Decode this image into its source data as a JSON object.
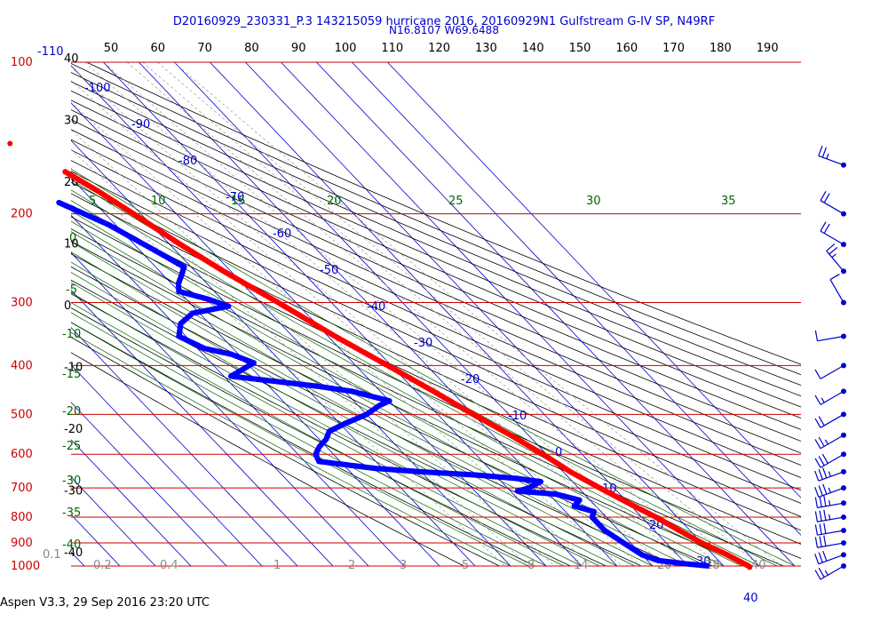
{
  "header": {
    "title_line1": "D20160929_230331_P.3 143215059 hurricane 2016, 20160929N1 Gulfstream G-IV SP, N49RF",
    "title_line2": "N16.8107 W69.6488"
  },
  "footer": {
    "caption": "Aspen V3.3, 29 Sep 2016  23:20 UTC"
  },
  "colors": {
    "isobar": "#cc0000",
    "isotherm": "#0000cc",
    "dry_adiabat": "#000000",
    "moist_adiabat": "#006600",
    "mixing_ratio": "#999999",
    "temperature_trace": "#ff0000",
    "dewpoint_trace": "#0000ff",
    "wind": "#0000cc"
  },
  "chart_data": {
    "type": "skew-T log-P",
    "pressure_levels_hpa": [
      100,
      200,
      300,
      400,
      500,
      600,
      700,
      800,
      900,
      1000
    ],
    "pressure_labels": [
      "100",
      "200",
      "300",
      "400",
      "500",
      "600",
      "700",
      "800",
      "900",
      "1000"
    ],
    "top_theta_labels": [
      "50",
      "60",
      "70",
      "80",
      "90",
      "100",
      "110",
      "120",
      "130",
      "140",
      "150",
      "160",
      "170",
      "180",
      "190"
    ],
    "left_theta_labels": [
      "40",
      "30",
      "20",
      "10",
      "0",
      "-10",
      "-20",
      "-30",
      "-40"
    ],
    "isotherm_labels": [
      "-110",
      "-100",
      "-90",
      "-80",
      "-70",
      "-60",
      "-50",
      "-40",
      "-30",
      "-20",
      "-10",
      "0",
      "10",
      "20",
      "30",
      "40"
    ],
    "moist_adiabat_labels": [
      "5",
      "10",
      "15",
      "20",
      "25",
      "30",
      "35",
      "0",
      "-5",
      "-10",
      "-15",
      "-20",
      "-25",
      "-30",
      "-35",
      "-40"
    ],
    "mixing_ratio_labels": [
      "0.1",
      "0.2",
      "0.4",
      "1",
      "2",
      "3",
      "5",
      "8",
      "14",
      "20",
      "28",
      "40"
    ],
    "temperature_profile": {
      "name": "Temperature",
      "points": [
        {
          "p": 165,
          "t": -60
        },
        {
          "p": 180,
          "t": -56
        },
        {
          "p": 200,
          "t": -52
        },
        {
          "p": 230,
          "t": -47
        },
        {
          "p": 260,
          "t": -42
        },
        {
          "p": 300,
          "t": -35
        },
        {
          "p": 350,
          "t": -28
        },
        {
          "p": 400,
          "t": -21
        },
        {
          "p": 450,
          "t": -15
        },
        {
          "p": 500,
          "t": -10
        },
        {
          "p": 550,
          "t": -5
        },
        {
          "p": 600,
          "t": -1
        },
        {
          "p": 650,
          "t": 2
        },
        {
          "p": 700,
          "t": 6
        },
        {
          "p": 750,
          "t": 10
        },
        {
          "p": 800,
          "t": 14
        },
        {
          "p": 850,
          "t": 17
        },
        {
          "p": 900,
          "t": 20
        },
        {
          "p": 950,
          "t": 24
        },
        {
          "p": 1000,
          "t": 27
        },
        {
          "p": 1010,
          "t": 27
        }
      ]
    },
    "isolated_point": {
      "p": 145,
      "t": -68
    },
    "dewpoint_profile": {
      "name": "Dewpoint",
      "points": [
        {
          "p": 190,
          "t": -70
        },
        {
          "p": 210,
          "t": -62
        },
        {
          "p": 240,
          "t": -55
        },
        {
          "p": 255,
          "t": -52
        },
        {
          "p": 265,
          "t": -55
        },
        {
          "p": 275,
          "t": -58
        },
        {
          "p": 285,
          "t": -60
        },
        {
          "p": 295,
          "t": -54
        },
        {
          "p": 305,
          "t": -50
        },
        {
          "p": 315,
          "t": -62
        },
        {
          "p": 330,
          "t": -68
        },
        {
          "p": 350,
          "t": -72
        },
        {
          "p": 370,
          "t": -68
        },
        {
          "p": 380,
          "t": -62
        },
        {
          "p": 395,
          "t": -58
        },
        {
          "p": 410,
          "t": -64
        },
        {
          "p": 420,
          "t": -68
        },
        {
          "p": 440,
          "t": -46
        },
        {
          "p": 450,
          "t": -38
        },
        {
          "p": 470,
          "t": -30
        },
        {
          "p": 480,
          "t": -34
        },
        {
          "p": 500,
          "t": -40
        },
        {
          "p": 520,
          "t": -48
        },
        {
          "p": 540,
          "t": -55
        },
        {
          "p": 560,
          "t": -58
        },
        {
          "p": 580,
          "t": -62
        },
        {
          "p": 600,
          "t": -65
        },
        {
          "p": 620,
          "t": -66
        },
        {
          "p": 640,
          "t": -52
        },
        {
          "p": 650,
          "t": -40
        },
        {
          "p": 660,
          "t": -25
        },
        {
          "p": 670,
          "t": -15
        },
        {
          "p": 680,
          "t": -9
        },
        {
          "p": 700,
          "t": -14
        },
        {
          "p": 710,
          "t": -18
        },
        {
          "p": 720,
          "t": -8
        },
        {
          "p": 740,
          "t": -3
        },
        {
          "p": 760,
          "t": -6
        },
        {
          "p": 780,
          "t": -2
        },
        {
          "p": 800,
          "t": -4
        },
        {
          "p": 850,
          "t": -4
        },
        {
          "p": 900,
          "t": -2
        },
        {
          "p": 950,
          "t": 0
        },
        {
          "p": 975,
          "t": 3
        },
        {
          "p": 990,
          "t": 10
        },
        {
          "p": 1000,
          "t": 16
        }
      ]
    },
    "wind_barbs": [
      {
        "p": 160,
        "dir": 290,
        "spd": 25
      },
      {
        "p": 200,
        "dir": 300,
        "spd": 20
      },
      {
        "p": 230,
        "dir": 300,
        "spd": 20
      },
      {
        "p": 260,
        "dir": 320,
        "spd": 25
      },
      {
        "p": 300,
        "dir": 330,
        "spd": 10
      },
      {
        "p": 350,
        "dir": 260,
        "spd": 10
      },
      {
        "p": 400,
        "dir": 240,
        "spd": 10
      },
      {
        "p": 450,
        "dir": 240,
        "spd": 15
      },
      {
        "p": 500,
        "dir": 240,
        "spd": 20
      },
      {
        "p": 550,
        "dir": 240,
        "spd": 25
      },
      {
        "p": 600,
        "dir": 240,
        "spd": 30
      },
      {
        "p": 650,
        "dir": 250,
        "spd": 35
      },
      {
        "p": 700,
        "dir": 250,
        "spd": 35
      },
      {
        "p": 750,
        "dir": 260,
        "spd": 35
      },
      {
        "p": 800,
        "dir": 260,
        "spd": 35
      },
      {
        "p": 850,
        "dir": 260,
        "spd": 30
      },
      {
        "p": 900,
        "dir": 260,
        "spd": 30
      },
      {
        "p": 950,
        "dir": 250,
        "spd": 30
      },
      {
        "p": 1000,
        "dir": 240,
        "spd": 25
      }
    ]
  }
}
